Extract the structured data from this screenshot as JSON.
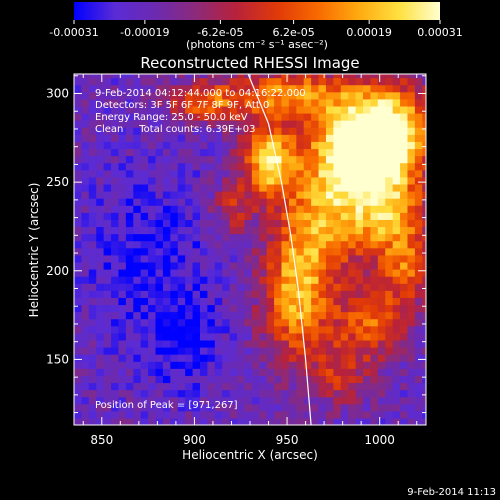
{
  "chart_data": {
    "type": "heatmap",
    "title": "Reconstructed RHESSI Image",
    "xlabel": "Heliocentric X (arcsec)",
    "ylabel": "Heliocentric Y (arcsec)",
    "xlim": [
      835,
      1025
    ],
    "ylim": [
      113,
      311
    ],
    "x_ticks": [
      "850",
      "900",
      "950",
      "1000"
    ],
    "x_tick_values": [
      850,
      900,
      950,
      1000
    ],
    "y_ticks": [
      "150",
      "200",
      "250",
      "300"
    ],
    "y_tick_values": [
      150,
      200,
      250,
      300
    ],
    "colorbar": {
      "range": [
        -0.00031,
        0.00031
      ],
      "ticks_top": [
        "-6.2e-05",
        "6.2e-05"
      ],
      "ticks_top_values": [
        -6.2e-05,
        6.2e-05
      ],
      "ticks_bottom": [
        "-0.00031",
        "-0.00019",
        "0.00019",
        "0.00031"
      ],
      "ticks_bottom_values": [
        -0.00031,
        -0.00019,
        0.00019,
        0.00031
      ],
      "units": "(photons cm⁻² s⁻¹ asec⁻²)",
      "colors": [
        "#0000ff",
        "#5a2bd6",
        "#6c2ab0",
        "#8c2a7a",
        "#b8223a",
        "#e03a08",
        "#f86a00",
        "#ffaa10",
        "#ffe040",
        "#ffffd0"
      ]
    },
    "annotations": [
      "9-Feb-2014 04:12:44.000 to 04:16:22.000",
      "Detectors: 3F 5F 6F 7F 8F 9F, Att 0",
      "Energy Range: 25.0 - 50.0 keV",
      "Clean     Total counts: 6.39E+03",
      "Position of Peak = [971,267]"
    ],
    "peak_position": [
      971,
      267
    ],
    "limb_curve": {
      "x": [
        929,
        940,
        947,
        952,
        956,
        960,
        963
      ],
      "y": [
        311,
        283,
        250,
        220,
        190,
        150,
        113
      ]
    },
    "emission_regions": [
      {
        "x": 988,
        "y": 265,
        "sigma_x": 20,
        "sigma_y": 22,
        "intensity": 1.0
      },
      {
        "x": 1005,
        "y": 280,
        "sigma_x": 18,
        "sigma_y": 18,
        "intensity": 0.8
      },
      {
        "x": 940,
        "y": 262,
        "sigma_x": 10,
        "sigma_y": 14,
        "intensity": 0.9
      },
      {
        "x": 955,
        "y": 185,
        "sigma_x": 13,
        "sigma_y": 24,
        "intensity": 0.75
      },
      {
        "x": 968,
        "y": 225,
        "sigma_x": 16,
        "sigma_y": 22,
        "intensity": 0.55
      },
      {
        "x": 1005,
        "y": 230,
        "sigma_x": 14,
        "sigma_y": 16,
        "intensity": 0.6
      },
      {
        "x": 905,
        "y": 295,
        "sigma_x": 14,
        "sigma_y": 8,
        "intensity": 0.55
      },
      {
        "x": 950,
        "y": 300,
        "sigma_x": 22,
        "sigma_y": 10,
        "intensity": 0.65
      },
      {
        "x": 995,
        "y": 170,
        "sigma_x": 14,
        "sigma_y": 14,
        "intensity": 0.55
      },
      {
        "x": 1015,
        "y": 200,
        "sigma_x": 10,
        "sigma_y": 14,
        "intensity": 0.5
      },
      {
        "x": 920,
        "y": 235,
        "sigma_x": 8,
        "sigma_y": 10,
        "intensity": 0.35
      },
      {
        "x": 978,
        "y": 140,
        "sigma_x": 12,
        "sigma_y": 12,
        "intensity": 0.35
      }
    ],
    "negative_regions": [
      {
        "x": 875,
        "y": 205,
        "sigma_x": 22,
        "sigma_y": 32
      },
      {
        "x": 895,
        "y": 160,
        "sigma_x": 14,
        "sigma_y": 18
      }
    ]
  },
  "footer": {
    "timestamp": "9-Feb-2014 11:13"
  }
}
